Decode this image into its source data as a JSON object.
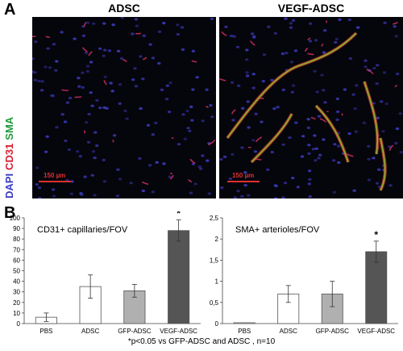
{
  "panel_a_label": "A",
  "panel_b_label": "B",
  "micrographs": [
    {
      "title": "ADSC",
      "scale_bar": "150 µm"
    },
    {
      "title": "VEGF-ADSC",
      "scale_bar": "150 µm"
    }
  ],
  "stain_legend": [
    {
      "text": "DAPI",
      "color": "#3a3ac8"
    },
    {
      "text": "CD31",
      "color": "#d81e2e"
    },
    {
      "text": "SMA",
      "color": "#1f9a3a"
    }
  ],
  "colors": {
    "pbs_bar": "#ffffff",
    "adsc_bar": "#ffffff",
    "gfp_adsc_bar": "#b0b0b0",
    "vegf_adsc_bar": "#555555",
    "bar_outline": "#555555"
  },
  "chart_data": [
    {
      "type": "bar",
      "title": "CD31+ capillaries/FOV",
      "categories": [
        "PBS",
        "ADSC",
        "GFP-ADSC",
        "VEGF-ADSC"
      ],
      "values": [
        6,
        35,
        31,
        88
      ],
      "errors": [
        4,
        11,
        6,
        10
      ],
      "ylim": [
        0,
        100
      ],
      "yticks": [
        "0",
        "10",
        "20",
        "30",
        "40",
        "50",
        "60",
        "70",
        "80",
        "90",
        "100"
      ],
      "significance": [
        "",
        "",
        "",
        "*"
      ]
    },
    {
      "type": "bar",
      "title": "SMA+ arterioles/FOV",
      "categories": [
        "PBS",
        "ADSC",
        "GFP-ADSC",
        "VEGF-ADSC"
      ],
      "values": [
        0.02,
        0.7,
        0.7,
        1.7
      ],
      "errors": [
        0,
        0.2,
        0.3,
        0.25
      ],
      "ylim": [
        0,
        2.5
      ],
      "yticks": [
        "0",
        "0,5",
        "1",
        "1,5",
        "2",
        "2,5"
      ],
      "significance": [
        "",
        "",
        "",
        "*"
      ]
    }
  ],
  "footnote": "*p<0.05 vs GFP-ADSC and ADSC , n=10"
}
